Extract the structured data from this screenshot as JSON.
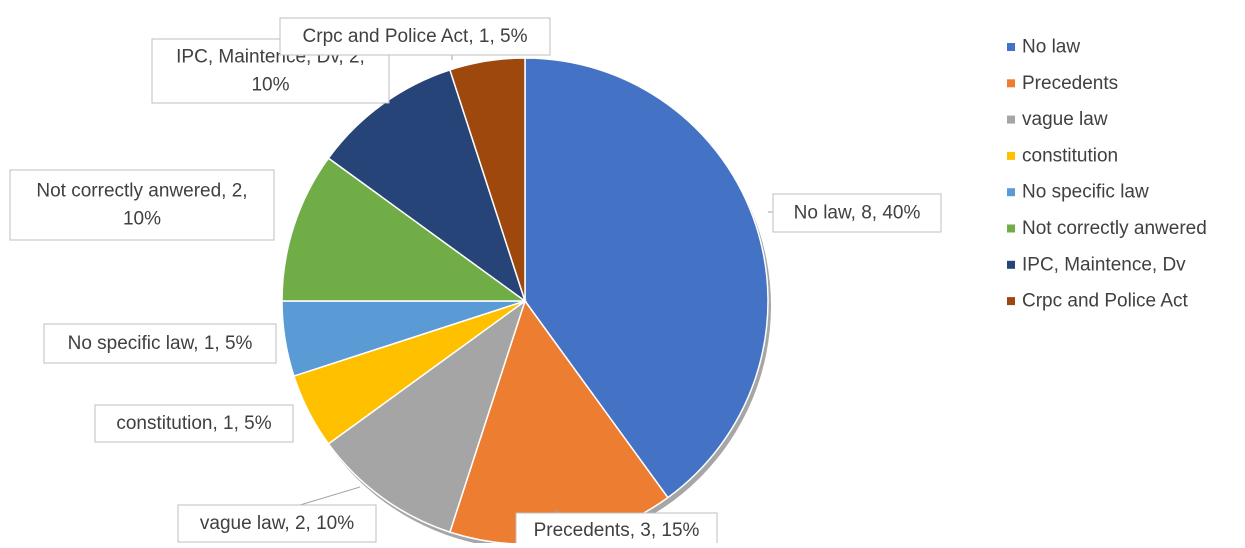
{
  "chart_data": {
    "type": "pie",
    "title": "",
    "label_format": "{category}, {value}, {percent}",
    "categories": [
      "No law",
      "Precedents",
      "vague law",
      "constitution",
      "No specific law",
      "Not correctly anwered",
      "IPC, Maintence, Dv",
      "Crpc and Police Act"
    ],
    "values": [
      8,
      3,
      2,
      1,
      1,
      2,
      2,
      1
    ],
    "percentages": [
      "40%",
      "15%",
      "10%",
      "5%",
      "5%",
      "10%",
      "10%",
      "5%"
    ],
    "data_labels": [
      [
        "No law, 8, 40%"
      ],
      [
        "Precedents, 3, 15%"
      ],
      [
        "vague law, 2, 10%"
      ],
      [
        "constitution, 1, 5%"
      ],
      [
        "No specific law, 1, 5%"
      ],
      [
        "Not correctly anwered, 2,",
        "10%"
      ],
      [
        "IPC, Maintence, Dv, 2,",
        "10%"
      ],
      [
        "Crpc and Police Act, 1, 5%"
      ]
    ],
    "colors": [
      "#4472C4",
      "#ED7D31",
      "#A5A5A5",
      "#FFC000",
      "#5B9BD5",
      "#70AD47",
      "#264478",
      "#9E480E"
    ],
    "legend": {
      "position": "right",
      "entries": [
        "No law",
        "Precedents",
        "vague law",
        "constitution",
        "No specific law",
        "Not correctly anwered",
        "IPC, Maintence, Dv",
        "Crpc and Police Act"
      ]
    },
    "start_angle_deg": 0,
    "direction": "clockwise"
  }
}
